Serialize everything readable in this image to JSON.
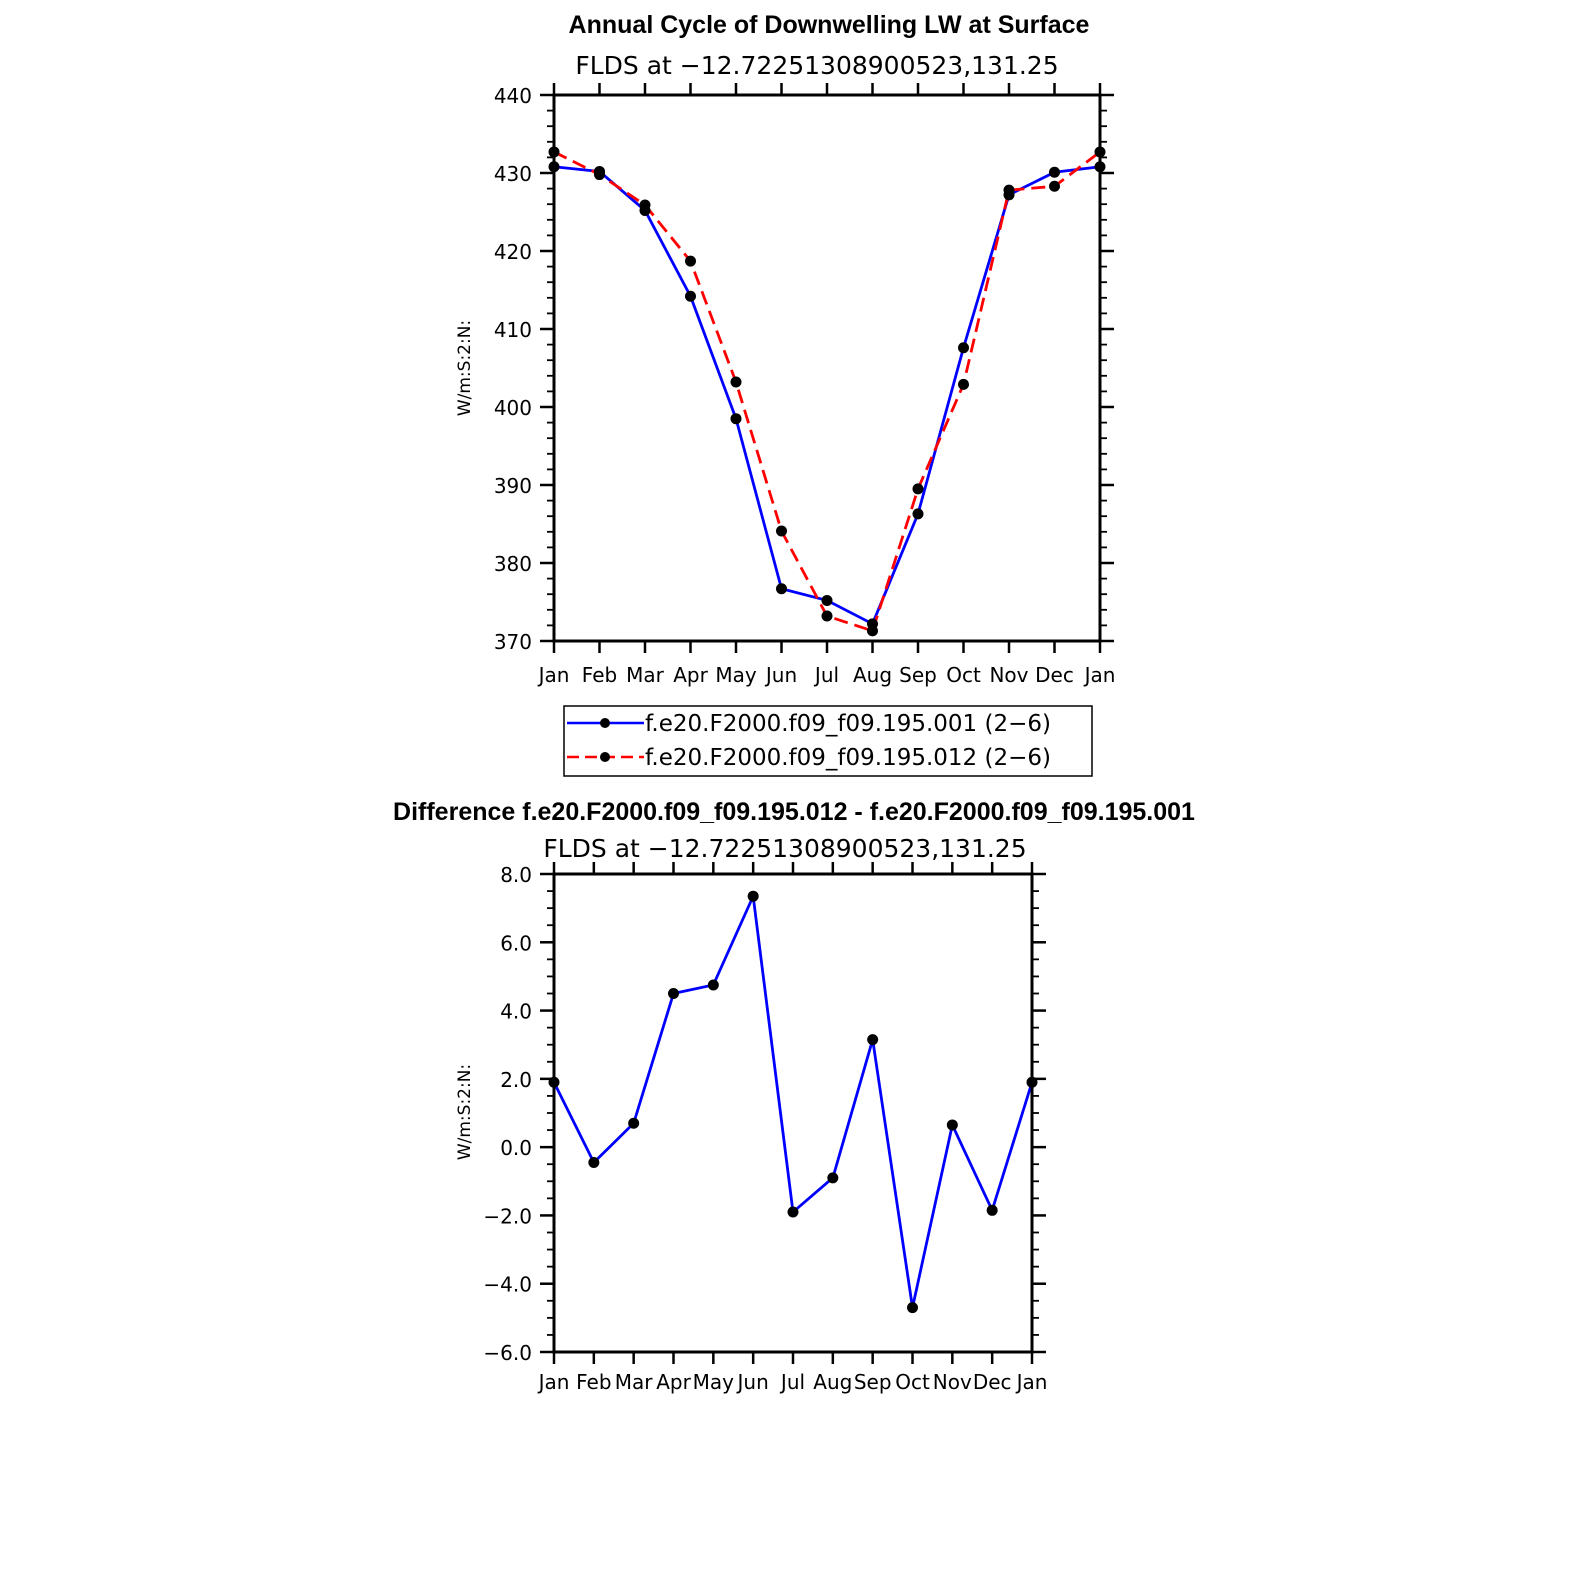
{
  "chart_data": [
    {
      "type": "line",
      "title": "Annual Cycle of Downwelling LW at Surface",
      "subtitle": "FLDS at −12.72251308900523,131.25",
      "ylabel": "W/m:S:2:N:",
      "xlabel": "",
      "categories": [
        "Jan",
        "Feb",
        "Mar",
        "Apr",
        "May",
        "Jun",
        "Jul",
        "Aug",
        "Sep",
        "Oct",
        "Nov",
        "Dec",
        "Jan"
      ],
      "ylim": [
        370,
        440
      ],
      "yticks": [
        "370",
        "380",
        "390",
        "400",
        "410",
        "420",
        "430",
        "440"
      ],
      "legend_position": "bottom",
      "series": [
        {
          "name": "f.e20.F2000.f09_f09.195.001 (2−6)",
          "color": "#0000ff",
          "dash": "solid",
          "values": [
            430.8,
            430.2,
            425.2,
            414.2,
            398.5,
            376.7,
            375.2,
            372.2,
            386.3,
            407.6,
            427.2,
            430.1,
            430.8
          ]
        },
        {
          "name": "f.e20.F2000.f09_f09.195.012 (2−6)",
          "color": "#ff0000",
          "dash": "dashed",
          "values": [
            432.7,
            429.8,
            425.9,
            418.7,
            403.2,
            384.1,
            373.2,
            371.3,
            389.5,
            402.9,
            427.8,
            428.3,
            432.7
          ]
        }
      ]
    },
    {
      "type": "line",
      "title": "Difference f.e20.F2000.f09_f09.195.012 - f.e20.F2000.f09_f09.195.001",
      "subtitle": "FLDS at −12.72251308900523,131.25",
      "ylabel": "W/m:S:2:N:",
      "xlabel": "",
      "categories": [
        "Jan",
        "Feb",
        "Mar",
        "Apr",
        "May",
        "Jun",
        "Jul",
        "Aug",
        "Sep",
        "Oct",
        "Nov",
        "Dec",
        "Jan"
      ],
      "ylim": [
        -6,
        8
      ],
      "yticks": [
        "−6.0",
        "−4.0",
        "−2.0",
        "0.0",
        "2.0",
        "4.0",
        "6.0",
        "8.0"
      ],
      "series": [
        {
          "color": "#0000ff",
          "dash": "solid",
          "values": [
            1.9,
            -0.45,
            0.7,
            4.5,
            4.75,
            7.35,
            -1.9,
            -0.9,
            3.15,
            -4.7,
            0.65,
            -1.85,
            1.9
          ]
        }
      ]
    }
  ]
}
